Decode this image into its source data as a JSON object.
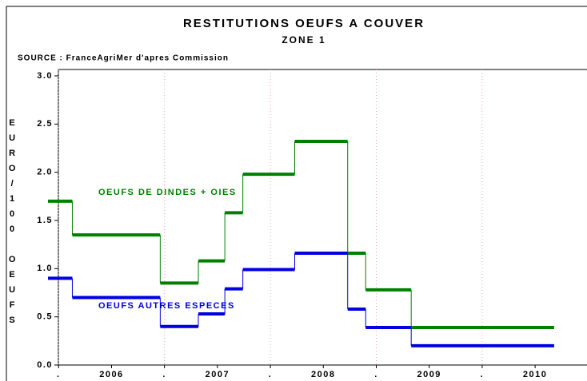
{
  "chart_data": {
    "type": "step",
    "title": "RESTITUTIONS OEUFS A COUVER",
    "subtitle": "ZONE 1",
    "source": "SOURCE : FranceAgriMer d'apres Commission",
    "y_label": "EURO/100 OEUFS",
    "x": [
      2005.9,
      2006.13,
      2006.96,
      2007.32,
      2007.57,
      2007.74,
      2008.23,
      2008.73,
      2008.9,
      2009.33,
      2010.68
    ],
    "series": [
      {
        "name": "OEUFS DE DINDES + OIES",
        "color": "#008000",
        "values": [
          1.7,
          1.35,
          0.85,
          1.08,
          1.58,
          1.98,
          2.32,
          1.16,
          0.78,
          0.39,
          null
        ]
      },
      {
        "name": "OEUFS AUTRES ESPECES",
        "color": "#0000e0",
        "values": [
          0.9,
          0.7,
          0.4,
          0.53,
          0.79,
          0.99,
          1.16,
          0.58,
          0.39,
          0.2,
          null
        ]
      }
    ],
    "xlim": [
      2005.9,
      2010.99
    ],
    "xticks": [
      {
        "value": 2006,
        "label": "."
      },
      {
        "value": 2006.5,
        "label": "2006"
      },
      {
        "value": 2007,
        "label": "."
      },
      {
        "value": 2007.5,
        "label": "2007"
      },
      {
        "value": 2008,
        "label": "."
      },
      {
        "value": 2008.5,
        "label": "2008"
      },
      {
        "value": 2009,
        "label": "."
      },
      {
        "value": 2009.5,
        "label": "2009"
      },
      {
        "value": 2010,
        "label": "."
      },
      {
        "value": 2010.5,
        "label": "2010"
      }
    ],
    "xgrid_ticks": [
      2006,
      2007,
      2008,
      2009,
      2010
    ],
    "ylim": [
      0,
      3
    ],
    "yticks": [
      {
        "value": 0,
        "label": "0.0"
      },
      0.5,
      {
        "value": 1,
        "label": "1.0"
      },
      1.5,
      {
        "value": 2,
        "label": "2.0"
      },
      2.5,
      {
        "value": 3,
        "label": "3.0"
      }
    ]
  }
}
